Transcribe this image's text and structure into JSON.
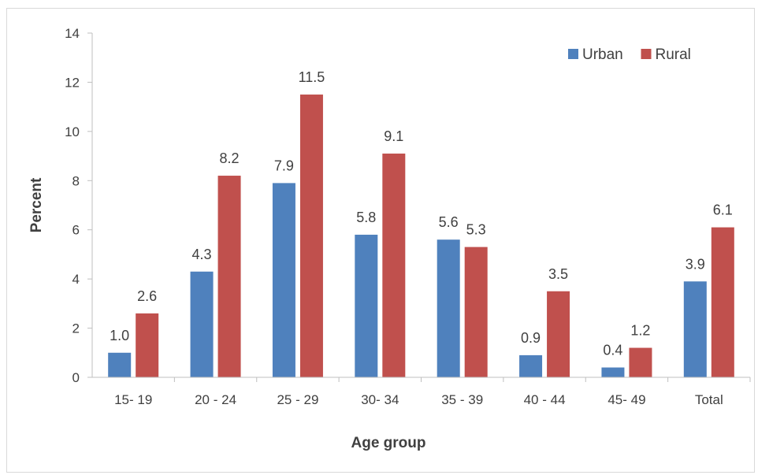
{
  "chart_data": {
    "type": "bar",
    "title": "",
    "xlabel": "Age group",
    "ylabel": "Percent",
    "ylim": [
      0,
      14
    ],
    "yticks": [
      0,
      2,
      4,
      6,
      8,
      10,
      12,
      14
    ],
    "grid": false,
    "legend_position": "top-right",
    "categories": [
      "15- 19",
      "20 - 24",
      "25 - 29",
      "30- 34",
      "35 - 39",
      "40 - 44",
      "45- 49",
      "Total"
    ],
    "series": [
      {
        "name": "Urban",
        "color": "#4f81bd",
        "values": [
          1.0,
          4.3,
          7.9,
          5.8,
          5.6,
          0.9,
          0.4,
          3.9
        ],
        "labels": [
          "1.0",
          "4.3",
          "7.9",
          "5.8",
          "5.6",
          "0.9",
          "0.4",
          "3.9"
        ]
      },
      {
        "name": "Rural",
        "color": "#c0504d",
        "values": [
          2.6,
          8.2,
          11.5,
          9.1,
          5.3,
          3.5,
          1.2,
          6.1
        ],
        "labels": [
          "2.6",
          "8.2",
          "11.5",
          "9.1",
          "5.3",
          "3.5",
          "1.2",
          "6.1"
        ]
      }
    ]
  }
}
